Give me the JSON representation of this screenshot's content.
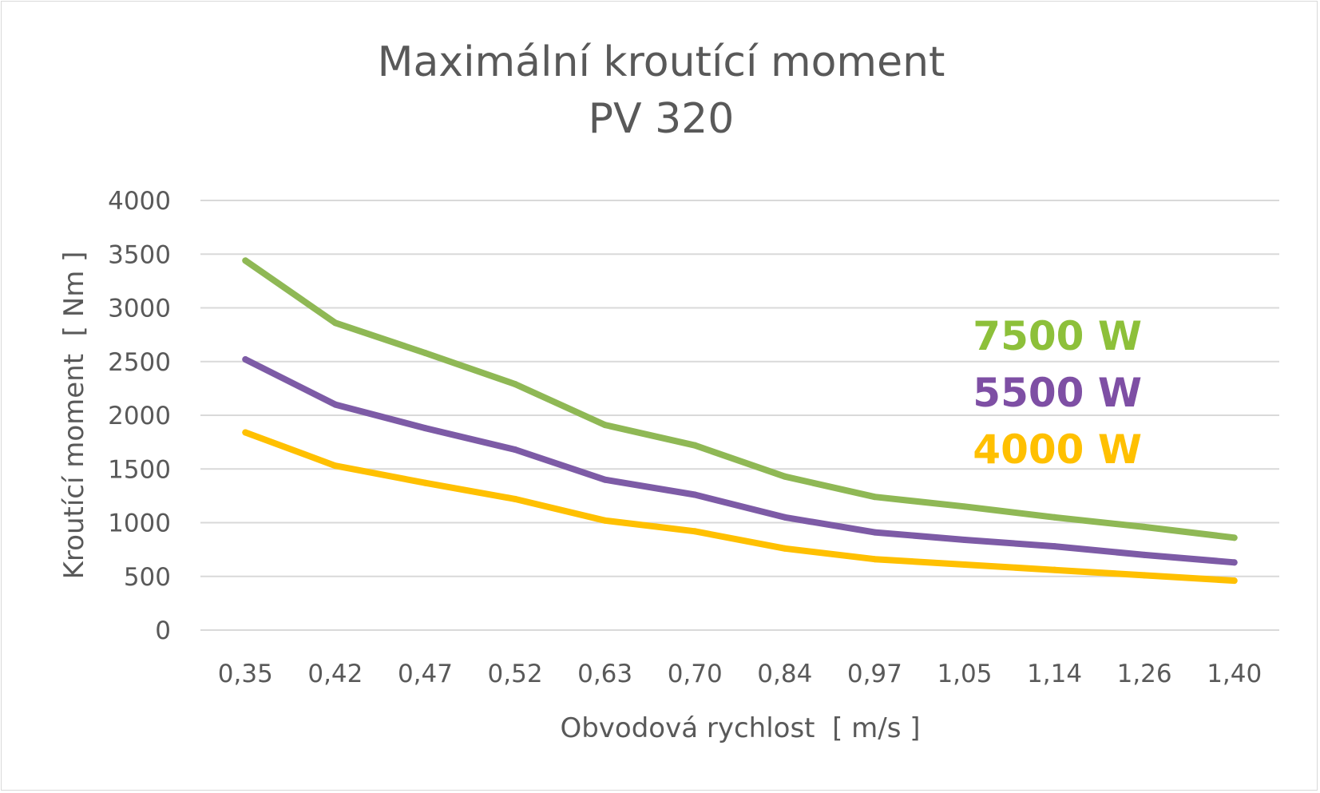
{
  "chart_data": {
    "type": "line",
    "title": "Maximální kroutící moment",
    "subtitle": "PV 320",
    "xlabel": "Obvodová rychlost  [ m/s ]",
    "ylabel": "Kroutící moment  [ Nm ]",
    "categories": [
      "0,35",
      "0,42",
      "0,47",
      "0,52",
      "0,63",
      "0,70",
      "0,84",
      "0,97",
      "1,05",
      "1,14",
      "1,26",
      "1,40"
    ],
    "ylim": [
      0,
      4000
    ],
    "yticks": [
      "0",
      "500",
      "1000",
      "1500",
      "2000",
      "2500",
      "3000",
      "3500",
      "4000"
    ],
    "grid": true,
    "legend": "inline labels, right",
    "series": [
      {
        "name": "7500 W",
        "color": "#8fb855",
        "label_color": "#8dc03a",
        "values": [
          3440,
          2860,
          2580,
          2290,
          1910,
          1720,
          1430,
          1240,
          1150,
          1050,
          960,
          860
        ]
      },
      {
        "name": "5500 W",
        "color": "#7d5ba6",
        "label_color": "#7e4fa4",
        "values": [
          2520,
          2100,
          1880,
          1680,
          1400,
          1260,
          1050,
          910,
          840,
          780,
          700,
          630
        ]
      },
      {
        "name": "4000 W",
        "color": "#ffc000",
        "label_color": "#ffc000",
        "values": [
          1840,
          1530,
          1370,
          1220,
          1020,
          920,
          760,
          660,
          610,
          560,
          510,
          460
        ]
      }
    ]
  }
}
